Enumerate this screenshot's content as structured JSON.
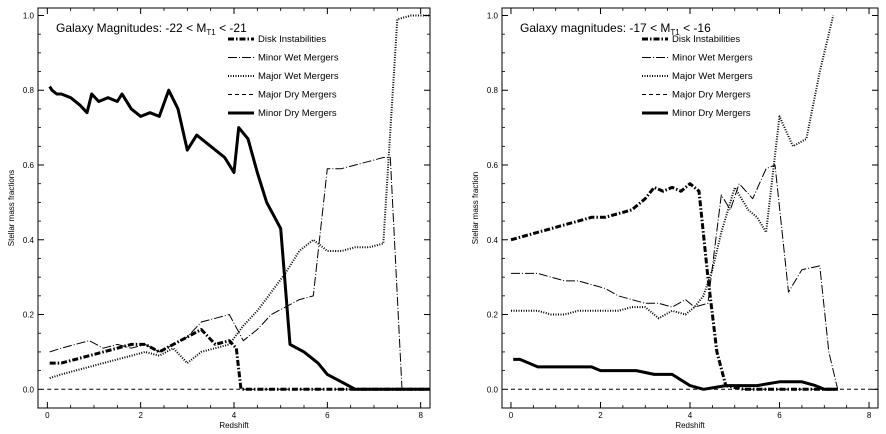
{
  "chart_data": [
    {
      "type": "line",
      "title_prefix": "Galaxy Magnitudes: -22  < M",
      "title_sub": "T1",
      "title_suffix": " < -21",
      "xlabel": "Redshift",
      "ylabel": "Stellar mass fractions",
      "xlim": [
        -0.2,
        8.2
      ],
      "ylim": [
        -0.05,
        1.02
      ],
      "xticks": [
        0,
        2,
        4,
        6,
        8
      ],
      "yticks": [
        0.0,
        0.2,
        0.4,
        0.6,
        0.8,
        1.0
      ],
      "xtick_labels": [
        "0",
        "2",
        "4",
        "6",
        "8"
      ],
      "ytick_labels": [
        "0.0",
        "0.2",
        "0.4",
        "0.6",
        "0.8",
        "1.0"
      ],
      "legend": "top-right",
      "series": [
        {
          "name": "Disk Instabilities",
          "style": "dashdot-heavy",
          "x": [
            0.05,
            0.3,
            0.6,
            0.9,
            1.2,
            1.5,
            1.8,
            2.1,
            2.4,
            2.7,
            3.0,
            3.3,
            3.6,
            3.9,
            4.05,
            4.15,
            4.5,
            5,
            6,
            7,
            8.2
          ],
          "y": [
            0.07,
            0.07,
            0.08,
            0.09,
            0.1,
            0.11,
            0.12,
            0.12,
            0.1,
            0.12,
            0.14,
            0.16,
            0.12,
            0.13,
            0.11,
            0.0,
            0.0,
            0.0,
            0.0,
            0.0,
            0.0
          ]
        },
        {
          "name": "Minor Wet Mergers",
          "style": "longdashdot",
          "x": [
            0.05,
            0.3,
            0.6,
            0.9,
            1.2,
            1.5,
            1.8,
            2.1,
            2.4,
            2.7,
            3.0,
            3.3,
            3.6,
            3.9,
            4.2,
            4.5,
            4.8,
            5.1,
            5.4,
            5.7,
            6.0,
            6.3,
            6.6,
            6.9,
            7.2,
            7.35,
            7.6,
            8.2
          ],
          "y": [
            0.1,
            0.11,
            0.12,
            0.13,
            0.11,
            0.12,
            0.11,
            0.12,
            0.1,
            0.12,
            0.14,
            0.18,
            0.19,
            0.2,
            0.13,
            0.16,
            0.2,
            0.22,
            0.24,
            0.25,
            0.59,
            0.59,
            0.6,
            0.61,
            0.62,
            0.62,
            0.0,
            0.0
          ]
        },
        {
          "name": "Major Wet Mergers",
          "style": "dotted",
          "x": [
            0.05,
            0.3,
            0.6,
            0.9,
            1.2,
            1.5,
            1.8,
            2.1,
            2.4,
            2.7,
            3.0,
            3.3,
            3.6,
            3.9,
            4.2,
            4.5,
            4.8,
            5.1,
            5.4,
            5.7,
            6.0,
            6.3,
            6.6,
            6.9,
            7.2,
            7.5,
            7.8,
            8.2
          ],
          "y": [
            0.03,
            0.04,
            0.05,
            0.06,
            0.07,
            0.08,
            0.09,
            0.1,
            0.09,
            0.11,
            0.07,
            0.1,
            0.11,
            0.12,
            0.17,
            0.21,
            0.26,
            0.31,
            0.37,
            0.4,
            0.37,
            0.37,
            0.38,
            0.38,
            0.39,
            0.99,
            1.0,
            1.0
          ]
        },
        {
          "name": "Major Dry Mergers",
          "style": "dashed",
          "x": [
            0.0,
            8.2
          ],
          "y": [
            0.0,
            0.0
          ]
        },
        {
          "name": "Minor Dry Mergers",
          "style": "solid-heavy",
          "x": [
            0.05,
            0.1,
            0.2,
            0.3,
            0.5,
            0.7,
            0.85,
            0.95,
            1.1,
            1.3,
            1.5,
            1.6,
            1.8,
            2.0,
            2.2,
            2.4,
            2.6,
            2.8,
            3.0,
            3.2,
            3.5,
            3.8,
            4.0,
            4.1,
            4.3,
            4.5,
            4.7,
            5.0,
            5.2,
            5.5,
            5.8,
            6.0,
            6.3,
            6.6,
            6.9,
            7.2,
            8.2
          ],
          "y": [
            0.81,
            0.8,
            0.79,
            0.79,
            0.78,
            0.76,
            0.74,
            0.79,
            0.77,
            0.78,
            0.77,
            0.79,
            0.75,
            0.73,
            0.74,
            0.73,
            0.8,
            0.75,
            0.64,
            0.68,
            0.65,
            0.62,
            0.58,
            0.7,
            0.67,
            0.58,
            0.5,
            0.43,
            0.12,
            0.1,
            0.07,
            0.04,
            0.02,
            0.0,
            0.0,
            0.0,
            0.0
          ]
        }
      ]
    },
    {
      "type": "line",
      "title_prefix": "Galaxy magnitudes:  -17 < M",
      "title_sub": "T1",
      "title_suffix": " < -16",
      "xlabel": "Redshift",
      "ylabel": "Stellar mass fraction",
      "xlim": [
        -0.2,
        8.2
      ],
      "ylim": [
        -0.05,
        1.02
      ],
      "xticks": [
        0,
        2,
        4,
        6,
        8
      ],
      "yticks": [
        0.0,
        0.2,
        0.4,
        0.6,
        0.8,
        1.0
      ],
      "xtick_labels": [
        "0",
        "2",
        "4",
        "6",
        "8"
      ],
      "ytick_labels": [
        "0.0",
        "0.2",
        "0.4",
        "0.6",
        "0.8",
        "1.0"
      ],
      "legend": "top-right",
      "series": [
        {
          "name": "Disk Instabilities",
          "style": "dashdot-heavy",
          "x": [
            0.0,
            0.3,
            0.6,
            0.9,
            1.2,
            1.5,
            1.8,
            2.1,
            2.4,
            2.7,
            3.0,
            3.2,
            3.4,
            3.6,
            3.8,
            4.0,
            4.2,
            4.4,
            4.6,
            4.8,
            5.2,
            6,
            7.3
          ],
          "y": [
            0.4,
            0.41,
            0.42,
            0.43,
            0.44,
            0.45,
            0.46,
            0.46,
            0.47,
            0.48,
            0.51,
            0.54,
            0.53,
            0.54,
            0.53,
            0.55,
            0.53,
            0.3,
            0.1,
            0.01,
            0.0,
            0.0,
            0.0
          ]
        },
        {
          "name": "Minor Wet Mergers",
          "style": "longdashdot",
          "x": [
            0.0,
            0.3,
            0.6,
            0.9,
            1.2,
            1.5,
            1.8,
            2.1,
            2.4,
            2.7,
            3.0,
            3.3,
            3.6,
            3.9,
            4.1,
            4.4,
            4.7,
            4.9,
            5.1,
            5.4,
            5.7,
            5.9,
            6.2,
            6.5,
            6.9,
            7.1,
            7.3
          ],
          "y": [
            0.31,
            0.31,
            0.31,
            0.3,
            0.29,
            0.29,
            0.28,
            0.27,
            0.25,
            0.24,
            0.23,
            0.23,
            0.22,
            0.24,
            0.22,
            0.23,
            0.52,
            0.48,
            0.55,
            0.51,
            0.59,
            0.6,
            0.26,
            0.32,
            0.33,
            0.1,
            0.0
          ]
        },
        {
          "name": "Major Wet Mergers",
          "style": "dotted",
          "x": [
            0.0,
            0.3,
            0.6,
            0.9,
            1.2,
            1.5,
            1.8,
            2.1,
            2.4,
            2.7,
            3.0,
            3.3,
            3.6,
            3.9,
            4.1,
            4.3,
            4.5,
            4.7,
            5.0,
            5.3,
            5.5,
            5.7,
            6.0,
            6.3,
            6.6,
            6.9,
            7.2
          ],
          "y": [
            0.21,
            0.21,
            0.21,
            0.2,
            0.2,
            0.21,
            0.21,
            0.21,
            0.21,
            0.22,
            0.22,
            0.19,
            0.21,
            0.2,
            0.22,
            0.25,
            0.32,
            0.42,
            0.54,
            0.48,
            0.46,
            0.42,
            0.73,
            0.65,
            0.67,
            0.85,
            1.0
          ]
        },
        {
          "name": "Major Dry Mergers",
          "style": "dashed",
          "x": [
            0.0,
            8.2
          ],
          "y": [
            0.0,
            0.0
          ]
        },
        {
          "name": "Minor Dry Mergers",
          "style": "solid-heavy",
          "x": [
            0.05,
            0.2,
            0.4,
            0.6,
            1.0,
            1.4,
            1.8,
            2.0,
            2.4,
            2.8,
            3.2,
            3.6,
            4.0,
            4.3,
            4.8,
            5.5,
            6.0,
            6.5,
            6.8,
            7.0,
            7.3
          ],
          "y": [
            0.08,
            0.08,
            0.07,
            0.06,
            0.06,
            0.06,
            0.06,
            0.05,
            0.05,
            0.05,
            0.04,
            0.04,
            0.01,
            0.0,
            0.01,
            0.01,
            0.02,
            0.02,
            0.01,
            0.0,
            0.0
          ]
        }
      ]
    }
  ]
}
